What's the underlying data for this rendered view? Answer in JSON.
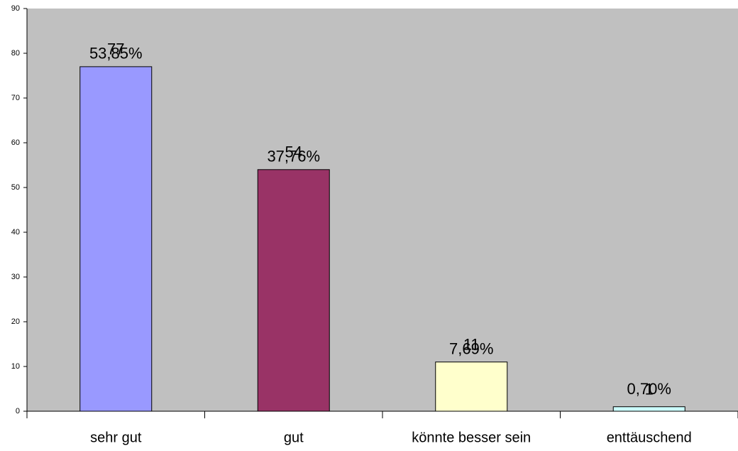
{
  "chart_data": {
    "type": "bar",
    "categories": [
      "sehr gut",
      "gut",
      "könnte besser sein",
      "enttäuschend"
    ],
    "values": [
      77,
      54,
      11,
      1
    ],
    "colors": [
      "#9999ff",
      "#993366",
      "#ffffcc",
      "#ccffff"
    ],
    "value_labels_inside": [
      "53,85%",
      "37,76%",
      "7,69%",
      "0,70%"
    ],
    "ylim": [
      0,
      90
    ],
    "yticks": [
      0,
      10,
      20,
      30,
      40,
      50,
      60,
      70,
      80,
      90
    ],
    "plot_background": "#c0c0c0"
  }
}
